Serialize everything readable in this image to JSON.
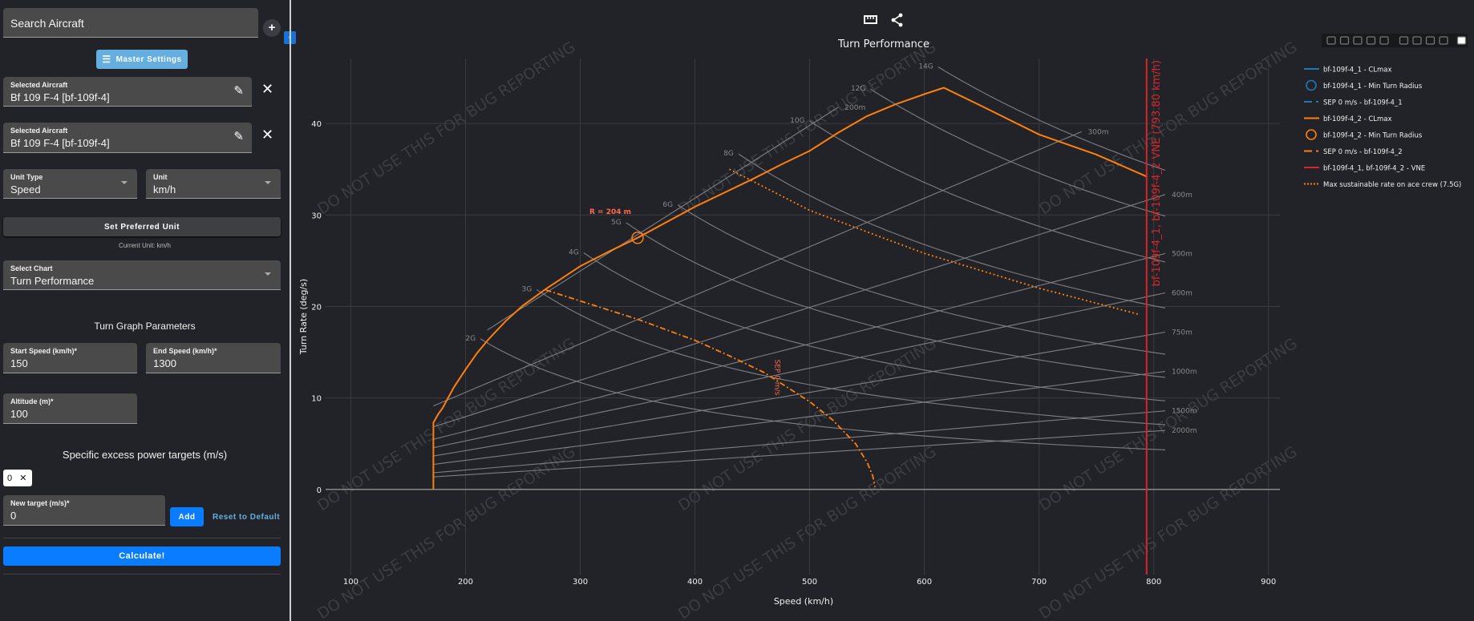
{
  "sidebar": {
    "search_placeholder": "Search Aircraft",
    "add_icon": "plus-icon",
    "collapse_icon": "chevron-left-icon",
    "master_settings": "Master Settings",
    "aircraft": [
      {
        "label": "Selected Aircraft",
        "value": "Bf 109 F-4 [bf-109f-4]"
      },
      {
        "label": "Selected Aircraft",
        "value": "Bf 109 F-4 [bf-109f-4]"
      }
    ],
    "unit_type": {
      "label": "Unit Type",
      "value": "Speed"
    },
    "unit": {
      "label": "Unit",
      "value": "km/h"
    },
    "set_preferred_unit": "Set Preferred Unit",
    "current_unit": "Current Unit: km/h",
    "select_chart": {
      "label": "Select Chart",
      "value": "Turn Performance"
    },
    "turn_params_heading": "Turn Graph Parameters",
    "start_speed": {
      "label": "Start Speed (km/h)*",
      "value": "150"
    },
    "end_speed": {
      "label": "End Speed (km/h)*",
      "value": "1300"
    },
    "altitude": {
      "label": "Altitude (m)*",
      "value": "100"
    },
    "sep_heading": "Specific excess power targets (m/s)",
    "sep_chip": "0",
    "new_target": {
      "label": "New target (m/s)*",
      "value": "0"
    },
    "add": "Add",
    "reset": "Reset to Default",
    "calculate": "Calculate!"
  },
  "colors": {
    "accent_blue": "#0a7cff",
    "master_blue": "#64aee0",
    "orange": "#ff7f0e",
    "blue": "#1f77b4",
    "vne_red": "#d62728"
  },
  "toolbar": {
    "icons": [
      "ruler-icon",
      "share-icon"
    ]
  },
  "modebar": [
    "camera-icon",
    "zoom-icon",
    "pan-icon",
    "box-select-icon",
    "lasso-icon",
    "zoom-in-icon",
    "zoom-out-icon",
    "autoscale-icon",
    "reset-axes-icon",
    "plotly-logo-icon"
  ],
  "watermark": "DO NOT USE THIS FOR BUG REPORTING",
  "chart_data": {
    "type": "line",
    "title": "Turn Performance",
    "xlabel": "Speed (km/h)",
    "ylabel": "Turn Rate (deg/s)",
    "xlim": [
      78,
      910
    ],
    "ylim": [
      -9.3,
      47.1
    ],
    "xticks": [
      100,
      200,
      300,
      400,
      500,
      600,
      700,
      800,
      900
    ],
    "yticks": [
      0,
      10,
      20,
      30,
      40
    ],
    "grid": true,
    "legend_position": "right",
    "legend": [
      {
        "name": "bf-109f-4_1 - CLmax",
        "style": "line",
        "color": "#1f77b4"
      },
      {
        "name": "bf-109f-4_1 - Min Turn Radius",
        "style": "circle",
        "color": "#1f77b4"
      },
      {
        "name": "SEP 0 m/s - bf-109f-4_1",
        "style": "dashdot",
        "color": "#1f77b4"
      },
      {
        "name": "bf-109f-4_2 - CLmax",
        "style": "line",
        "color": "#ff7f0e"
      },
      {
        "name": "bf-109f-4_2 - Min Turn Radius",
        "style": "circle",
        "color": "#ff7f0e"
      },
      {
        "name": "SEP 0 m/s - bf-109f-4_2",
        "style": "dashdot",
        "color": "#ff7f0e"
      },
      {
        "name": "bf-109f-4_1, bf-109f-4_2 - VNE",
        "style": "line",
        "color": "#d62728"
      },
      {
        "name": "Max sustainable rate on ace crew (7.5G)",
        "style": "dot",
        "color": "#ff7f0e"
      }
    ],
    "series": [
      {
        "name": "bf-109f-4_2 - CLmax",
        "color": "#ff7f0e",
        "style": "line",
        "x": [
          172,
          172,
          176,
          180,
          190,
          200,
          210,
          220,
          235,
          250,
          270,
          300,
          325,
          350,
          375,
          400,
          425,
          450,
          475,
          500,
          525,
          550,
          575,
          600,
          617,
          650,
          700,
          750,
          793.8
        ],
        "y": [
          0,
          7.3,
          8.2,
          8.9,
          11.2,
          13.1,
          14.9,
          16.4,
          18.4,
          20.1,
          21.9,
          24.4,
          26.0,
          27.5,
          29.2,
          30.9,
          32.4,
          33.9,
          35.5,
          37.0,
          39.0,
          40.8,
          42.1,
          43.2,
          43.9,
          41.9,
          38.8,
          36.6,
          34.2
        ]
      },
      {
        "name": "SEP 0 m/s - bf-109f-4_2",
        "color": "#ff7f0e",
        "style": "dashdot",
        "x": [
          270,
          300,
          350,
          400,
          430,
          460,
          480,
          500,
          520,
          540,
          550,
          555,
          557
        ],
        "y": [
          21.8,
          20.6,
          18.6,
          16.3,
          14.6,
          12.8,
          11.2,
          9.6,
          7.6,
          5.0,
          3.0,
          1.5,
          0.3
        ]
      },
      {
        "name": "Max sustainable rate on ace crew (7.5G)",
        "color": "#ff7f0e",
        "style": "dot",
        "x": [
          430,
          500,
          600,
          700,
          788
        ],
        "y": [
          35,
          30.5,
          25.8,
          22,
          19.1
        ]
      }
    ],
    "min_turn_radius": {
      "x": 350,
      "y": 27.5,
      "label": "R = 204 m",
      "color": "#ff7f0e"
    },
    "sep_label": "SEP 0 m/s",
    "vne": {
      "x": 793.8,
      "label": "bf-109f-4_1, bf-109f-4_2 VNE (793.80 km/h)",
      "color": "#d62728"
    },
    "g_lines": [
      {
        "label": "2G",
        "n": 2,
        "from": 213,
        "to": 810
      },
      {
        "label": "3G",
        "n": 3,
        "from": 262,
        "to": 810
      },
      {
        "label": "4G",
        "n": 4,
        "from": 303,
        "to": 810
      },
      {
        "label": "5G",
        "n": 5,
        "from": 340,
        "to": 810
      },
      {
        "label": "6G",
        "n": 6,
        "from": 385,
        "to": 810
      },
      {
        "label": "8G",
        "n": 8,
        "from": 438,
        "to": 810
      },
      {
        "label": "10G",
        "n": 10,
        "from": 500,
        "to": 810
      },
      {
        "label": "12G",
        "n": 12,
        "from": 553,
        "to": 810
      },
      {
        "label": "14G",
        "n": 14,
        "from": 612,
        "to": 810
      }
    ],
    "radius_lines": [
      {
        "label": "200m",
        "r": 200,
        "from": 219,
        "to": 525
      },
      {
        "label": "300m",
        "r": 300,
        "from": 172,
        "to": 737
      },
      {
        "label": "400m",
        "r": 400,
        "from": 172,
        "to": 810
      },
      {
        "label": "500m",
        "r": 500,
        "from": 172,
        "to": 810
      },
      {
        "label": "600m",
        "r": 600,
        "from": 172,
        "to": 810
      },
      {
        "label": "750m",
        "r": 750,
        "from": 172,
        "to": 810
      },
      {
        "label": "1000m",
        "r": 1000,
        "from": 172,
        "to": 810
      },
      {
        "label": "1500m",
        "r": 1500,
        "from": 172,
        "to": 810
      },
      {
        "label": "2000m",
        "r": 2000,
        "from": 172,
        "to": 810
      }
    ]
  }
}
